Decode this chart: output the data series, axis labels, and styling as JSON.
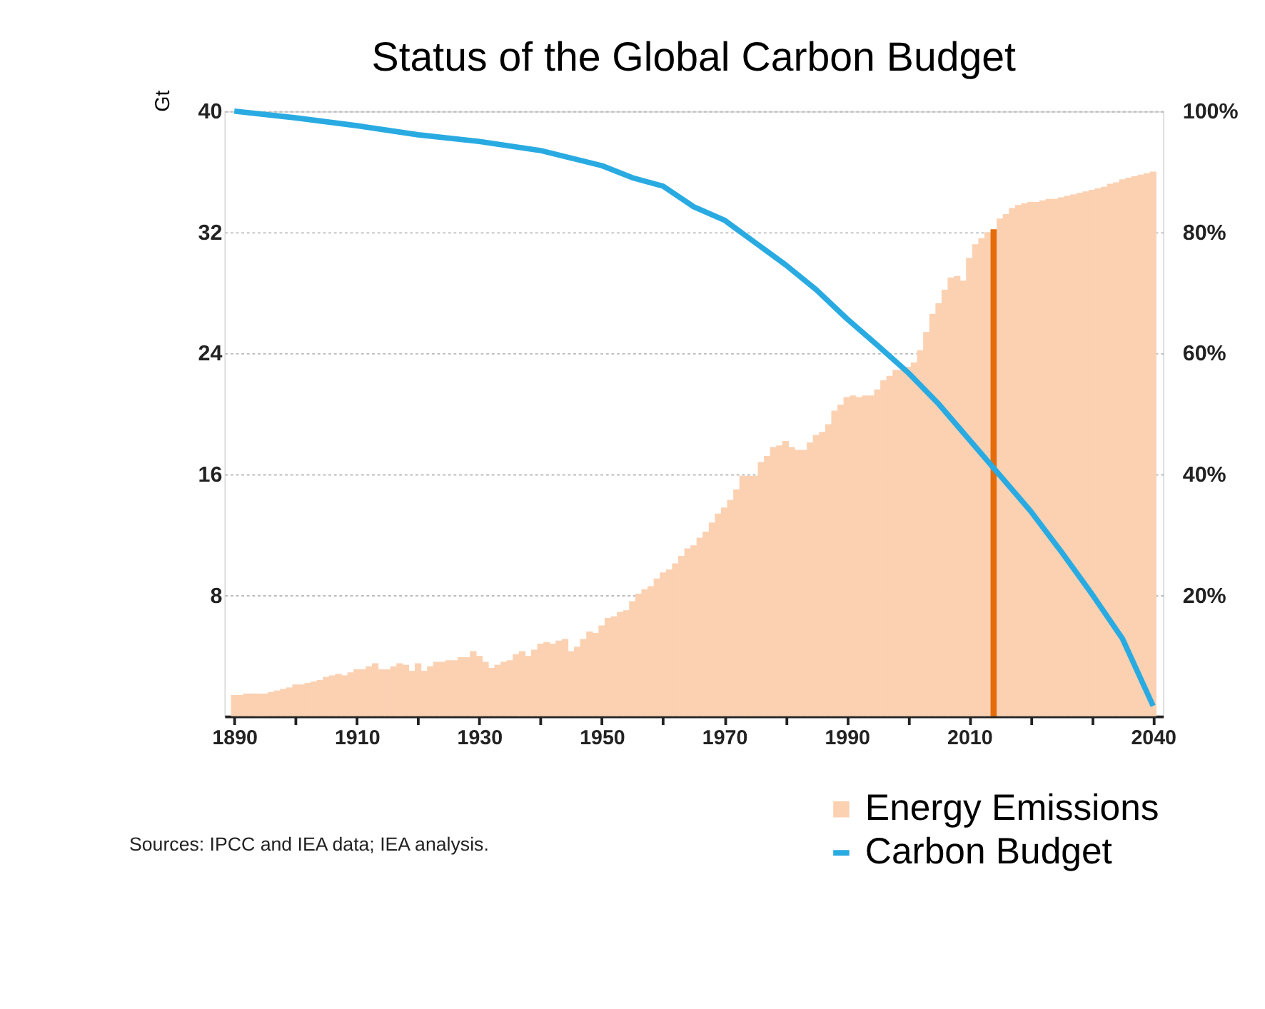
{
  "chart_data": {
    "type": "bar",
    "title": "Status of the Global Carbon Budget",
    "ylabel": "Gt",
    "annotations": [
      "Sources: IPCC and IEA data; IEA analysis."
    ],
    "x": [
      1890,
      1891,
      1892,
      1893,
      1894,
      1895,
      1896,
      1897,
      1898,
      1899,
      1900,
      1901,
      1902,
      1903,
      1904,
      1905,
      1906,
      1907,
      1908,
      1909,
      1910,
      1911,
      1912,
      1913,
      1914,
      1915,
      1916,
      1917,
      1918,
      1919,
      1920,
      1921,
      1922,
      1923,
      1924,
      1925,
      1926,
      1927,
      1928,
      1929,
      1930,
      1931,
      1932,
      1933,
      1934,
      1935,
      1936,
      1937,
      1938,
      1939,
      1940,
      1941,
      1942,
      1943,
      1944,
      1945,
      1946,
      1947,
      1948,
      1949,
      1950,
      1951,
      1952,
      1953,
      1954,
      1955,
      1956,
      1957,
      1958,
      1959,
      1960,
      1961,
      1962,
      1963,
      1964,
      1965,
      1966,
      1967,
      1968,
      1969,
      1970,
      1971,
      1972,
      1973,
      1974,
      1975,
      1976,
      1977,
      1978,
      1979,
      1980,
      1981,
      1982,
      1983,
      1984,
      1985,
      1986,
      1987,
      1988,
      1989,
      1990,
      1991,
      1992,
      1993,
      1994,
      1995,
      1996,
      1997,
      1998,
      1999,
      2000,
      2001,
      2002,
      2003,
      2004,
      2005,
      2006,
      2007,
      2008,
      2009,
      2010,
      2011,
      2012,
      2013,
      2014,
      2015,
      2016,
      2017,
      2018,
      2019,
      2020,
      2021,
      2022,
      2023,
      2024,
      2025,
      2026,
      2027,
      2028,
      2029,
      2030,
      2031,
      2032,
      2033,
      2034,
      2035,
      2036,
      2037,
      2038,
      2039,
      2040
    ],
    "series": [
      {
        "name": "Energy Emissions",
        "color": "#fbd1b2",
        "values": [
          1.4,
          1.4,
          1.5,
          1.5,
          1.5,
          1.5,
          1.6,
          1.7,
          1.8,
          1.9,
          2.1,
          2.1,
          2.2,
          2.3,
          2.4,
          2.6,
          2.7,
          2.8,
          2.7,
          2.9,
          3.1,
          3.1,
          3.3,
          3.5,
          3.1,
          3.1,
          3.3,
          3.5,
          3.4,
          3.0,
          3.5,
          3.0,
          3.3,
          3.6,
          3.6,
          3.7,
          3.7,
          3.9,
          3.9,
          4.3,
          4.0,
          3.6,
          3.2,
          3.4,
          3.6,
          3.7,
          4.1,
          4.3,
          4.0,
          4.4,
          4.8,
          4.9,
          4.8,
          5.0,
          5.1,
          4.3,
          4.6,
          5.1,
          5.6,
          5.5,
          6.0,
          6.5,
          6.6,
          6.9,
          7.0,
          7.6,
          8.1,
          8.4,
          8.6,
          9.1,
          9.5,
          9.7,
          10.1,
          10.6,
          11.1,
          11.3,
          11.8,
          12.2,
          12.8,
          13.4,
          13.8,
          14.3,
          15.0,
          15.9,
          15.9,
          15.9,
          16.8,
          17.2,
          17.8,
          17.9,
          18.2,
          17.8,
          17.6,
          17.6,
          18.1,
          18.6,
          18.8,
          19.3,
          20.2,
          20.6,
          21.1,
          21.2,
          21.1,
          21.2,
          21.2,
          21.6,
          22.2,
          22.5,
          22.9,
          22.9,
          23.1,
          23.4,
          24.2,
          25.4,
          26.6,
          27.3,
          28.2,
          29.0,
          29.1,
          28.8,
          30.3,
          31.2,
          31.6,
          32.0,
          32.2,
          32.9,
          33.2,
          33.6,
          33.8,
          33.9,
          34.0,
          34.0,
          34.1,
          34.2,
          34.2,
          34.3,
          34.4,
          34.5,
          34.6,
          34.7,
          34.8,
          34.9,
          35.0,
          35.2,
          35.3,
          35.5,
          35.6,
          35.7,
          35.8,
          35.9,
          36.0
        ],
        "colors": [
          "#fbd1b2",
          "#fbd1b2",
          "#fbd1b2",
          "#fbd1b2",
          "#fbd1b2",
          "#fbd1b2",
          "#fbd1b2",
          "#fbd1b2",
          "#fbd1b2",
          "#fbd1b2",
          "#fbd1b2",
          "#fbd1b2",
          "#fbd1b2",
          "#fbd1b2",
          "#fbd1b2",
          "#fbd1b2",
          "#fbd1b2",
          "#fbd1b2",
          "#fbd1b2",
          "#fbd1b2",
          "#fbd1b2",
          "#fbd1b2",
          "#fbd1b2",
          "#fbd1b2",
          "#fbd1b2",
          "#fbd1b2",
          "#fbd1b2",
          "#fbd1b2",
          "#fbd1b2",
          "#fbd1b2",
          "#fbd1b2",
          "#fbd1b2",
          "#fbd1b2",
          "#fbd1b2",
          "#fbd1b2",
          "#fbd1b2",
          "#fbd1b2",
          "#fbd1b2",
          "#fbd1b2",
          "#fbd1b2",
          "#fbd1b2",
          "#fbd1b2",
          "#fbd1b2",
          "#fbd1b2",
          "#fbd1b2",
          "#fbd1b2",
          "#fbd1b2",
          "#fbd1b2",
          "#fbd1b2",
          "#fbd1b2",
          "#fbd1b2",
          "#fbd1b2",
          "#fbd1b2",
          "#fbd1b2",
          "#fbd1b2",
          "#fbd1b2",
          "#fbd1b2",
          "#fbd1b2",
          "#fbd1b2",
          "#fbd1b2",
          "#fbd1b2",
          "#fbd1b2",
          "#fbd1b2",
          "#fbd1b2",
          "#fbd1b2",
          "#fbd1b2",
          "#fbd1b2",
          "#fbd1b2",
          "#fbd1b2",
          "#fbd1b2",
          "#fbd1b2",
          "#fbd1b2",
          "#fbd1b2",
          "#fbd1b2",
          "#fbd1b2",
          "#fbd1b2",
          "#fbd1b2",
          "#fbd1b2",
          "#fbd1b2",
          "#fbd1b2",
          "#fbd1b2",
          "#fbd1b2",
          "#fbd1b2",
          "#fbd1b2",
          "#fbd1b2",
          "#fbd1b2",
          "#fbd1b2",
          "#fbd1b2",
          "#fbd1b2",
          "#fbd1b2",
          "#fbd1b2",
          "#fbd1b2",
          "#fbd1b2",
          "#fbd1b2",
          "#fbd1b2",
          "#fbd1b2",
          "#fbd1b2",
          "#fbd1b2",
          "#fbd1b2",
          "#fbd1b2",
          "#fbd1b2",
          "#fbd1b2",
          "#fbd1b2",
          "#fbd1b2",
          "#fbd1b2",
          "#fbd1b2",
          "#fbd1b2",
          "#fbd1b2",
          "#fbd1b2",
          "#fbd1b2",
          "#fbd1b2",
          "#fbd1b2",
          "#fbd1b2",
          "#fbd1b2",
          "#fbd1b2",
          "#fbd1b2",
          "#fbd1b2",
          "#fbd1b2",
          "#fbd1b2",
          "#fbd1b2",
          "#fbd1b2",
          "#fbd1b2",
          "#fbd1b2",
          "#fbd1b2",
          "#e46c0a",
          "#fbd1b2",
          "#fbd1b2",
          "#fbd1b2",
          "#fbd1b2",
          "#fbd1b2",
          "#fbd1b2",
          "#fbd1b2",
          "#fbd1b2",
          "#fbd1b2",
          "#fbd1b2",
          "#fbd1b2",
          "#fbd1b2",
          "#fbd1b2",
          "#fbd1b2",
          "#fbd1b2",
          "#fbd1b2",
          "#fbd1b2",
          "#fbd1b2",
          "#fbd1b2",
          "#fbd1b2",
          "#fbd1b2",
          "#fbd1b2",
          "#fbd1b2",
          "#fbd1b2",
          "#fbd1b2",
          "#fbd1b2"
        ]
      },
      {
        "name": "Carbon Budget",
        "type": "line",
        "axis": "y2",
        "color": "#29abe2",
        "x": [
          1890,
          1900,
          1910,
          1920,
          1930,
          1940,
          1950,
          1955,
          1960,
          1965,
          1970,
          1975,
          1980,
          1985,
          1990,
          1995,
          2000,
          2005,
          2010,
          2015,
          2020,
          2025,
          2030,
          2035,
          2040
        ],
        "values": [
          100,
          98.9,
          97.6,
          96.1,
          95.0,
          93.5,
          91.0,
          89.0,
          87.6,
          84.2,
          82.0,
          78.3,
          74.6,
          70.5,
          65.7,
          61.3,
          56.8,
          51.6,
          45.7,
          39.8,
          33.9,
          27.2,
          20.2,
          12.8,
          1.7
        ]
      }
    ],
    "xlim": [
      1889.5,
      2040.5
    ],
    "xticks": [
      1890,
      {
        "value": 1900,
        "label": null
      },
      1910,
      {
        "value": 1920,
        "label": null
      },
      1930,
      {
        "value": 1940,
        "label": null
      },
      1950,
      {
        "value": 1960,
        "label": null
      },
      1970,
      {
        "value": 1980,
        "label": null
      },
      1990,
      {
        "value": 2000,
        "label": null
      },
      2010,
      {
        "value": 2020,
        "label": null
      },
      {
        "value": 2030,
        "label": null
      },
      2040
    ],
    "ylim": [
      0,
      40
    ],
    "yticks": [
      8,
      16,
      24,
      32,
      40
    ],
    "y2lim": [
      0,
      100
    ],
    "y2ticks": [
      {
        "value": 20,
        "label": "20%"
      },
      {
        "value": 40,
        "label": "40%"
      },
      {
        "value": 60,
        "label": "60%"
      },
      {
        "value": 80,
        "label": "80%"
      },
      {
        "value": 100,
        "label": "100%"
      }
    ],
    "grid": "y",
    "legend": "bottom right",
    "line_style": "solid",
    "marker": "none"
  }
}
